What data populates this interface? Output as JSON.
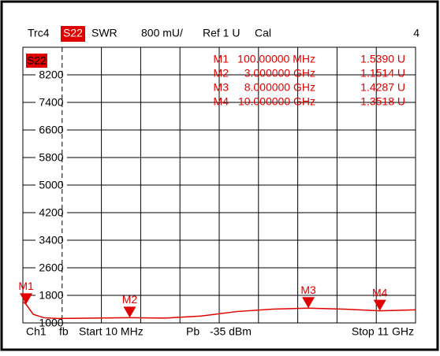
{
  "chart_data": {
    "type": "line",
    "header": {
      "trace": "Trc4",
      "param": "S22",
      "format": "SWR",
      "scale": "800 mU/",
      "ref": "Ref 1 U",
      "cal": "Cal",
      "number": "4"
    },
    "trace_label": "S22",
    "footer": {
      "channel": "Ch1",
      "fb": "fb",
      "start": "Start 10 MHz",
      "pb": "Pb",
      "power": "-35 dBm",
      "stop": "Stop 11 GHz"
    },
    "color": "#e00000",
    "xlim": [
      0.01,
      11
    ],
    "ylim": [
      1000,
      9000
    ],
    "yticks": [
      1000,
      1800,
      2600,
      3400,
      4200,
      5000,
      5800,
      6600,
      7400,
      8200
    ],
    "grid": true,
    "series": [
      {
        "name": "S22",
        "color": "#e00000",
        "x": [
          0.01,
          0.1,
          0.3,
          0.6,
          1,
          2,
          3,
          4,
          5,
          6,
          7,
          8,
          9,
          10,
          11
        ],
        "values": [
          1620,
          1539,
          1250,
          1150,
          1130,
          1140,
          1151,
          1140,
          1200,
          1330,
          1400,
          1429,
          1400,
          1352,
          1380
        ]
      }
    ],
    "markers": [
      {
        "name": "M1",
        "x": 0.1,
        "x_label": "100.00000 MHz",
        "value": 1539,
        "value_label": "1.5390 U"
      },
      {
        "name": "M2",
        "x": 3,
        "x_label": "3.000000 GHz",
        "value": 1151.4,
        "value_label": "1.1514 U"
      },
      {
        "name": "M3",
        "x": 8,
        "x_label": "8.000000 GHz",
        "value": 1428.7,
        "value_label": "1.4287 U"
      },
      {
        "name": "M4",
        "x": 10,
        "x_label": "10.000000 GHz",
        "value": 1351.8,
        "value_label": "1.3518 U"
      }
    ]
  }
}
